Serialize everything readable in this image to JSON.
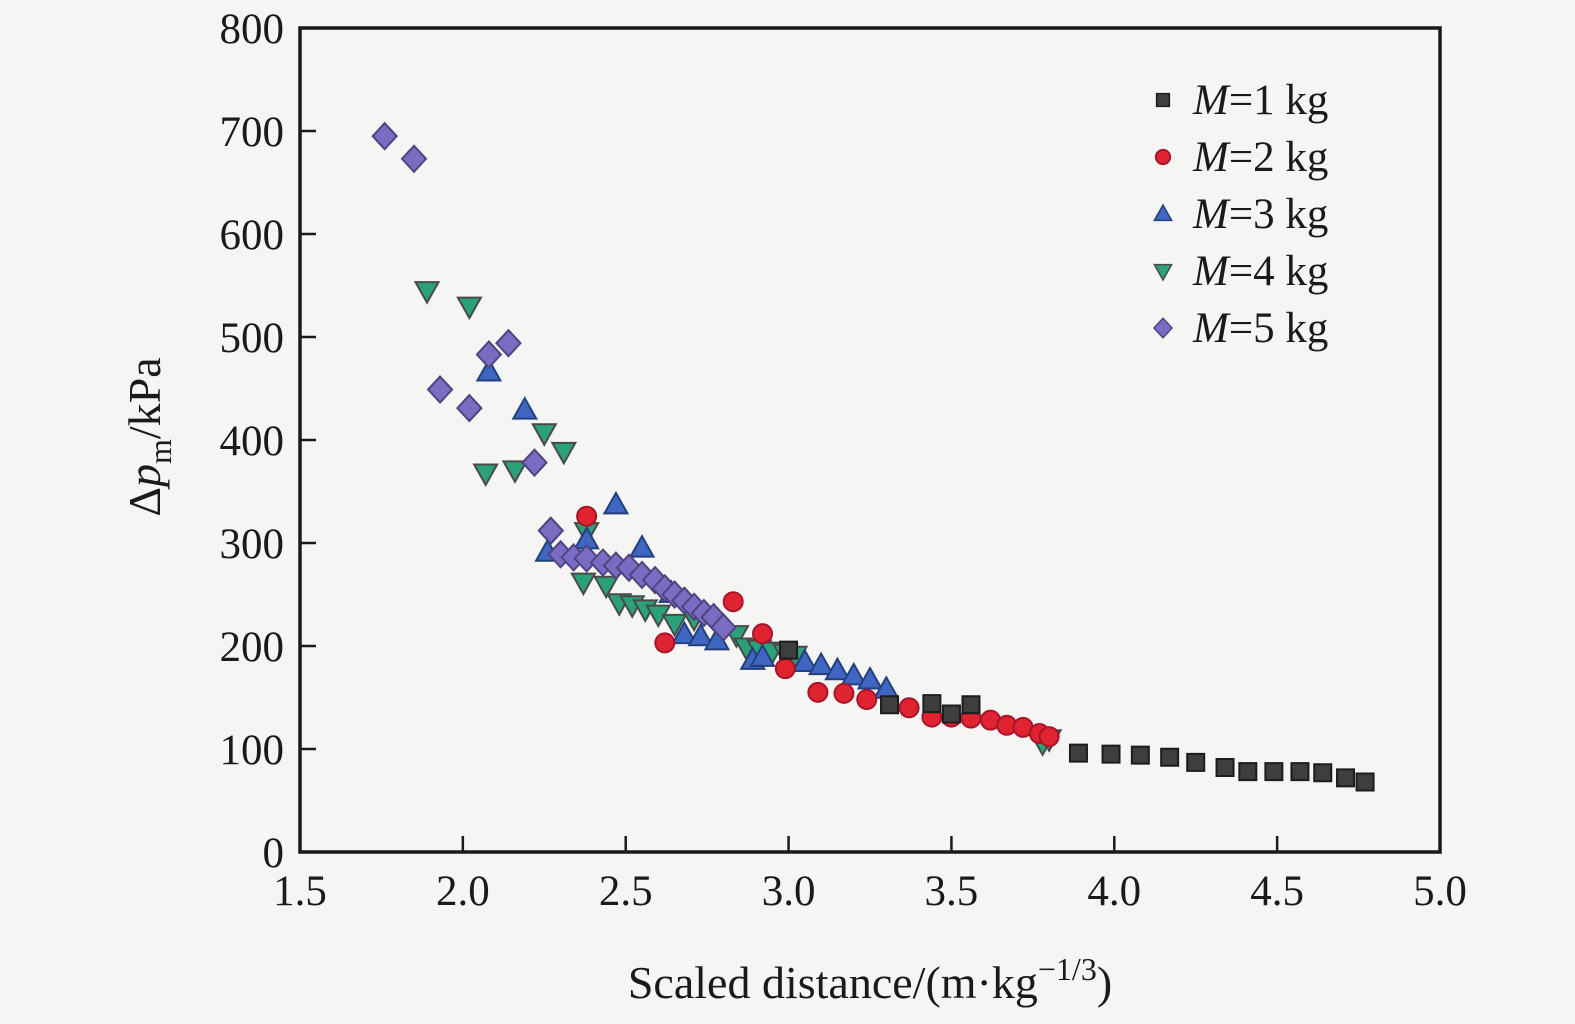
{
  "figure": {
    "background_color": "#f5f5f3",
    "axis_color": "#1a1a1a"
  },
  "axes": {
    "x": {
      "label_main": "Scaled distance/(m·kg",
      "label_sup": "−1/3",
      "label_close": ")",
      "min": 1.5,
      "max": 5.0,
      "tick_labels": [
        "1.5",
        "2.0",
        "2.5",
        "3.0",
        "3.5",
        "4.0",
        "4.5",
        "5.0"
      ],
      "tick_values": [
        1.5,
        2.0,
        2.5,
        3.0,
        3.5,
        4.0,
        4.5,
        5.0
      ]
    },
    "y": {
      "label_prefix": "Δ",
      "label_italic": "p",
      "label_sub": "m",
      "label_suffix": "/kPa",
      "min": 0,
      "max": 800,
      "tick_labels": [
        "0",
        "100",
        "200",
        "300",
        "400",
        "500",
        "600",
        "700",
        "800"
      ],
      "tick_values": [
        0,
        100,
        200,
        300,
        400,
        500,
        600,
        700,
        800
      ]
    }
  },
  "legend": {
    "position": "top-right",
    "items": [
      {
        "label_italic": "M",
        "label_rest": "=1 kg",
        "marker": "square",
        "color": "#3e3e40",
        "edge": "#1c1c1e"
      },
      {
        "label_italic": "M",
        "label_rest": "=2 kg",
        "marker": "circle",
        "color": "#e02330",
        "edge": "#a8142a"
      },
      {
        "label_italic": "M",
        "label_rest": "=3 kg",
        "marker": "triangle-up",
        "color": "#3f66c0",
        "edge": "#24407e"
      },
      {
        "label_italic": "M",
        "label_rest": "=4 kg",
        "marker": "triangle-down",
        "color": "#2aa178",
        "edge": "#4a4a4a"
      },
      {
        "label_italic": "M",
        "label_rest": "=5 kg",
        "marker": "diamond",
        "color": "#7a6cc2",
        "edge": "#4f447f"
      }
    ]
  },
  "chart_data": {
    "type": "scatter",
    "title": "",
    "xlabel": "Scaled distance/(m·kg^(-1/3))",
    "ylabel": "Δp_m/kPa",
    "xlim": [
      1.5,
      5.0
    ],
    "ylim": [
      0,
      800
    ],
    "grid": false,
    "legend_position": "top-right",
    "draw_order": [
      "M=4 kg",
      "M=3 kg",
      "M=5 kg",
      "M=2 kg",
      "M=1 kg"
    ],
    "series": [
      {
        "name": "M=1 kg",
        "marker": "square",
        "color": "#3e3e40",
        "edge": "#1c1c1e",
        "points": [
          [
            3.0,
            196
          ],
          [
            3.31,
            143
          ],
          [
            3.44,
            144
          ],
          [
            3.5,
            134
          ],
          [
            3.56,
            143
          ],
          [
            3.89,
            96
          ],
          [
            3.99,
            95
          ],
          [
            4.08,
            94
          ],
          [
            4.17,
            92
          ],
          [
            4.25,
            87
          ],
          [
            4.34,
            82
          ],
          [
            4.41,
            78
          ],
          [
            4.49,
            78
          ],
          [
            4.57,
            78
          ],
          [
            4.64,
            77
          ],
          [
            4.71,
            72
          ],
          [
            4.77,
            68
          ]
        ]
      },
      {
        "name": "M=2 kg",
        "marker": "circle",
        "color": "#e02330",
        "edge": "#a8142a",
        "points": [
          [
            2.38,
            326
          ],
          [
            2.62,
            203
          ],
          [
            2.83,
            243
          ],
          [
            2.92,
            212
          ],
          [
            2.99,
            178
          ],
          [
            3.09,
            155
          ],
          [
            3.17,
            154
          ],
          [
            3.24,
            148
          ],
          [
            3.37,
            140
          ],
          [
            3.44,
            131
          ],
          [
            3.5,
            131
          ],
          [
            3.56,
            130
          ],
          [
            3.62,
            128
          ],
          [
            3.67,
            123
          ],
          [
            3.72,
            121
          ],
          [
            3.77,
            115
          ],
          [
            3.8,
            112
          ]
        ]
      },
      {
        "name": "M=3 kg",
        "marker": "triangle-up",
        "color": "#3f66c0",
        "edge": "#24407e",
        "points": [
          [
            2.08,
            466
          ],
          [
            2.19,
            429
          ],
          [
            2.26,
            291
          ],
          [
            2.38,
            303
          ],
          [
            2.47,
            337
          ],
          [
            2.55,
            295
          ],
          [
            2.64,
            251
          ],
          [
            2.68,
            211
          ],
          [
            2.73,
            209
          ],
          [
            2.78,
            205
          ],
          [
            2.89,
            186
          ],
          [
            2.92,
            189
          ],
          [
            3.05,
            184
          ],
          [
            3.1,
            181
          ],
          [
            3.15,
            176
          ],
          [
            3.2,
            171
          ],
          [
            3.25,
            167
          ],
          [
            3.3,
            158
          ]
        ]
      },
      {
        "name": "M=4 kg",
        "marker": "triangle-down",
        "color": "#2aa178",
        "edge": "#4a4a4a",
        "points": [
          [
            1.89,
            545
          ],
          [
            2.02,
            530
          ],
          [
            2.07,
            368
          ],
          [
            2.16,
            371
          ],
          [
            2.25,
            407
          ],
          [
            2.31,
            389
          ],
          [
            2.37,
            262
          ],
          [
            2.38,
            311
          ],
          [
            2.44,
            259
          ],
          [
            2.48,
            242
          ],
          [
            2.52,
            240
          ],
          [
            2.56,
            236
          ],
          [
            2.6,
            231
          ],
          [
            2.65,
            222
          ],
          [
            2.71,
            227
          ],
          [
            2.84,
            211
          ],
          [
            2.87,
            199
          ],
          [
            2.91,
            197
          ],
          [
            2.95,
            195
          ],
          [
            2.99,
            193
          ],
          [
            3.02,
            191
          ],
          [
            3.78,
            106
          ],
          [
            3.8,
            110
          ]
        ]
      },
      {
        "name": "M=5 kg",
        "marker": "diamond",
        "color": "#7a6cc2",
        "edge": "#4f447f",
        "points": [
          [
            1.76,
            695
          ],
          [
            1.85,
            673
          ],
          [
            1.93,
            449
          ],
          [
            2.02,
            431
          ],
          [
            2.08,
            483
          ],
          [
            2.14,
            494
          ],
          [
            2.22,
            378
          ],
          [
            2.27,
            312
          ],
          [
            2.3,
            289
          ],
          [
            2.34,
            286
          ],
          [
            2.38,
            285
          ],
          [
            2.43,
            281
          ],
          [
            2.47,
            278
          ],
          [
            2.51,
            276
          ],
          [
            2.55,
            269
          ],
          [
            2.59,
            264
          ],
          [
            2.62,
            256
          ],
          [
            2.65,
            250
          ],
          [
            2.68,
            244
          ],
          [
            2.71,
            238
          ],
          [
            2.74,
            232
          ],
          [
            2.77,
            228
          ],
          [
            2.8,
            218
          ]
        ]
      }
    ]
  }
}
